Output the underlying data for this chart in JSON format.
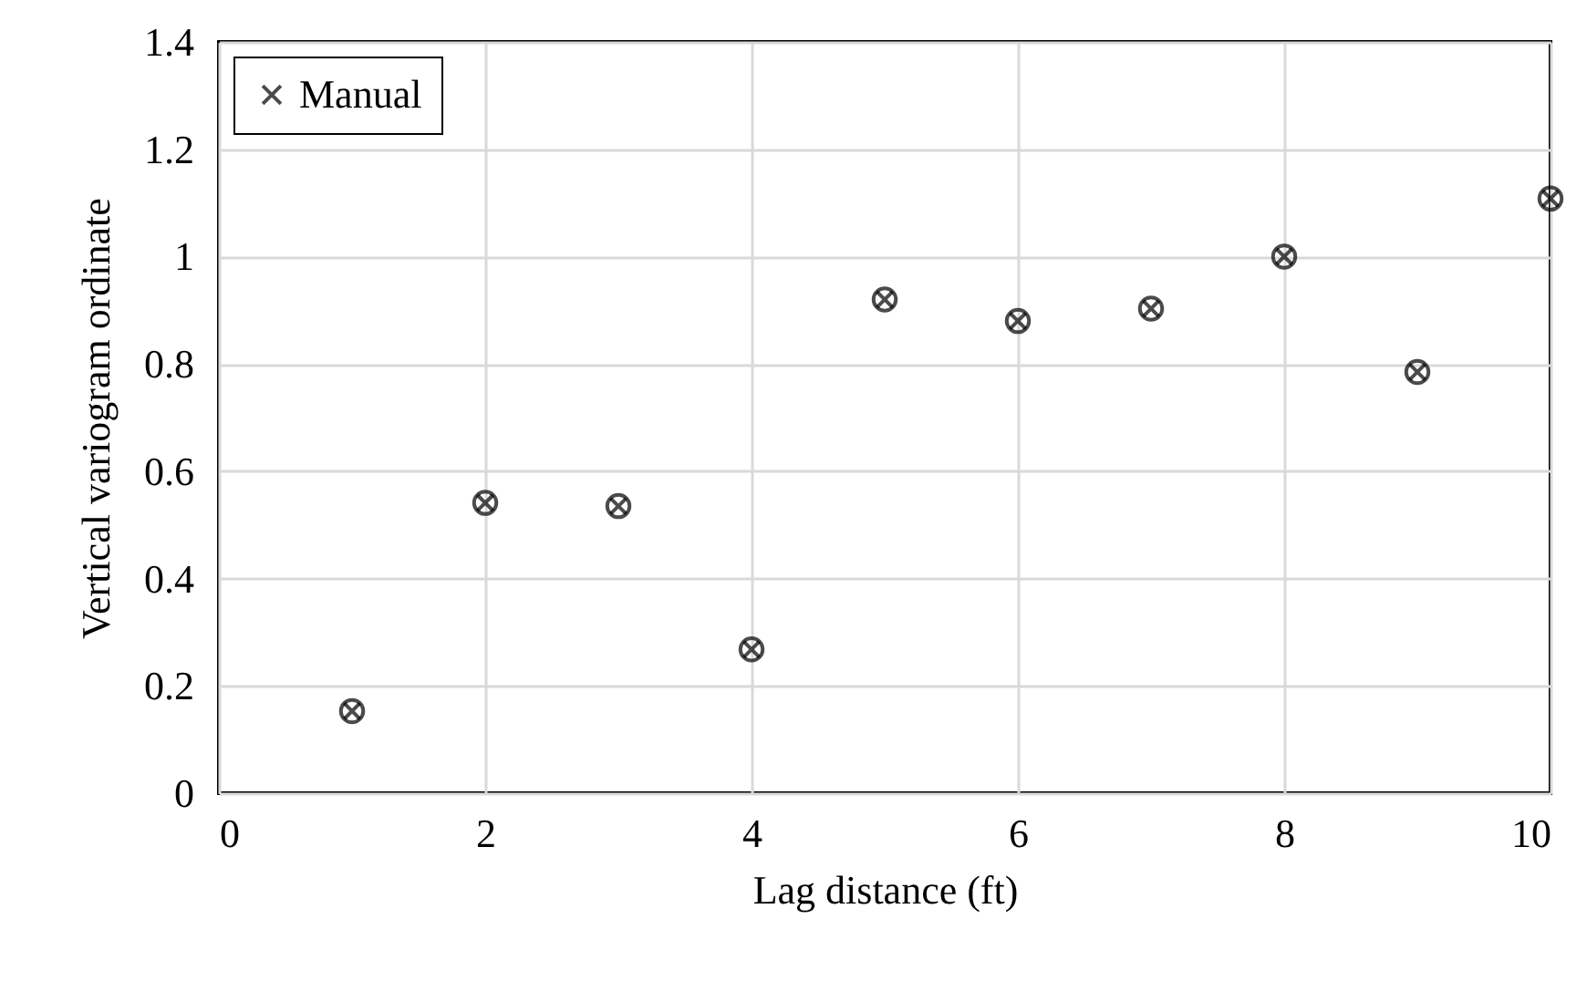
{
  "chart_data": {
    "type": "scatter",
    "xlabel": "Lag distance (ft)",
    "ylabel": "Vertical variogram ordinate",
    "x": [
      1,
      2,
      3,
      4,
      5,
      6,
      7,
      8,
      9,
      10
    ],
    "series": [
      {
        "color": "#000000",
        "marker": "circle",
        "values": [
          0.153,
          0.541,
          0.535,
          0.268,
          0.92,
          0.88,
          0.903,
          1.0,
          0.785,
          1.108
        ]
      },
      {
        "name": "Manual",
        "color": "#000000",
        "marker": "cross",
        "values": [
          0.153,
          0.541,
          0.535,
          0.268,
          0.92,
          0.88,
          0.903,
          1.0,
          0.785,
          1.108
        ]
      }
    ],
    "xlim": [
      0,
      10
    ],
    "xticks": [
      0,
      2,
      4,
      6,
      8,
      10
    ],
    "ylim": [
      0,
      1.4
    ],
    "yticks": [
      0,
      0.2,
      0.4,
      0.6,
      0.8,
      1,
      1.2,
      1.4
    ],
    "grid": true,
    "legend": "top left"
  }
}
